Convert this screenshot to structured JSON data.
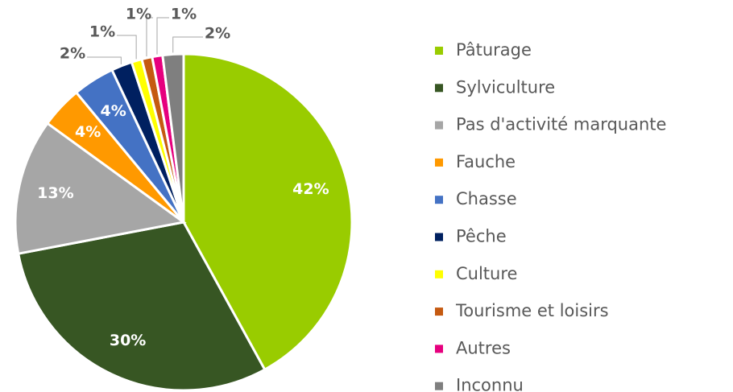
{
  "chart_data": {
    "type": "pie",
    "categories": [
      "Pâturage",
      "Sylviculture",
      "Pas d'activité marquante",
      "Fauche",
      "Chasse",
      "Pêche",
      "Culture",
      "Tourisme et loisirs",
      "Autres",
      "Inconnu"
    ],
    "values": [
      42,
      30,
      13,
      4,
      4,
      2,
      1,
      1,
      1,
      2
    ],
    "value_labels": [
      "42%",
      "30%",
      "13%",
      "4%",
      "4%",
      "2%",
      "1%",
      "1%",
      "1%",
      "2%"
    ],
    "colors": [
      "#99cc00",
      "#375623",
      "#a6a6a6",
      "#ff9900",
      "#4472c4",
      "#002060",
      "#ffff00",
      "#c55a11",
      "#e6007e",
      "#7f7f7f"
    ],
    "legend": "right"
  }
}
